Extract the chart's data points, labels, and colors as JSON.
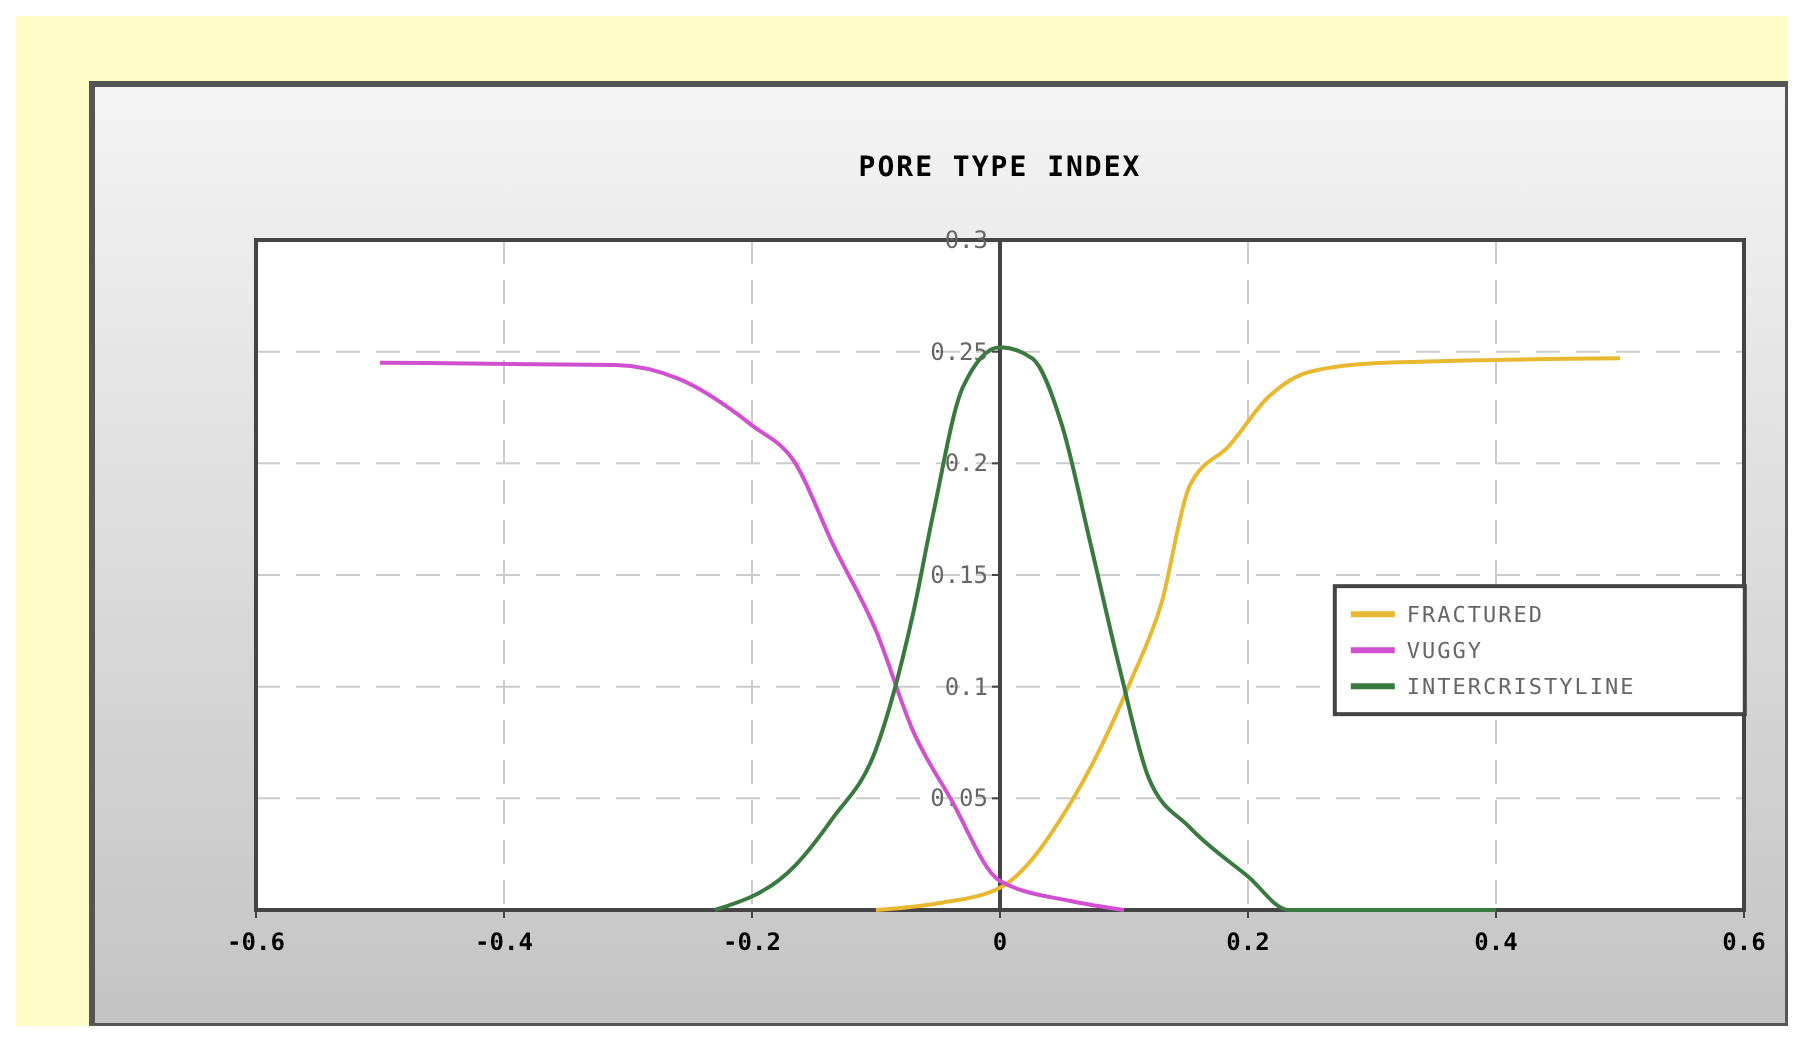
{
  "chart_data": {
    "type": "line",
    "title": "PORE TYPE INDEX",
    "xlim": [
      -0.6,
      0.6
    ],
    "xticks": [
      -0.6,
      -0.4,
      -0.2,
      0,
      0.2,
      0.4,
      0.6
    ],
    "ylim": [
      0,
      0.3
    ],
    "yticks": [
      {
        "value": 0,
        "label": null
      },
      0.05,
      0.1,
      0.15,
      0.2,
      0.25,
      0.3
    ],
    "grid": true,
    "legend": "right",
    "marker": "none",
    "line_style": "solid",
    "series": [
      {
        "name": "FRACTURED",
        "color": "#e8b830",
        "x": [
          -0.1,
          -0.05,
          0,
          0.057,
          0.09,
          0.105,
          0.13,
          0.153,
          0.185,
          0.217,
          0.25,
          0.31,
          0.5
        ],
        "values": [
          0,
          0.003,
          0.01,
          0.048,
          0.083,
          0.102,
          0.137,
          0.19,
          0.208,
          0.23,
          0.241,
          0.245,
          0.247
        ]
      },
      {
        "name": "VUGGY",
        "color": "#d050d0",
        "x": [
          -0.5,
          -0.31,
          -0.26,
          -0.2,
          -0.165,
          -0.135,
          -0.1,
          -0.07,
          -0.04,
          0,
          0.057,
          0.1
        ],
        "values": [
          0.245,
          0.244,
          0.238,
          0.217,
          0.2,
          0.164,
          0.125,
          0.08,
          0.05,
          0.013,
          0.004,
          0
        ]
      },
      {
        "name": "INTERCRISTYLINE",
        "color": "#3a7a40",
        "x": [
          -0.23,
          -0.165,
          -0.135,
          -0.1,
          -0.07,
          -0.054,
          -0.03,
          0,
          0.026,
          0.05,
          0.073,
          0.097,
          0.12,
          0.153,
          0.2,
          0.233,
          0.4
        ],
        "values": [
          0,
          0.02,
          0.041,
          0.072,
          0.133,
          0.177,
          0.234,
          0.252,
          0.247,
          0.217,
          0.164,
          0.107,
          0.059,
          0.037,
          0.015,
          0,
          0
        ]
      }
    ]
  }
}
